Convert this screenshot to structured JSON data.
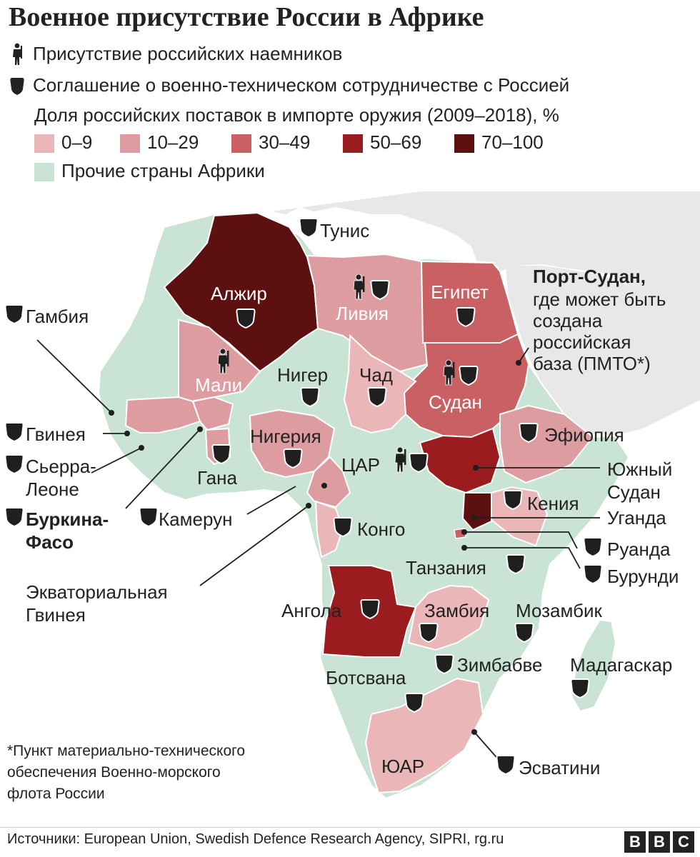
{
  "title": "Военное присутствие России в Африке",
  "legend": {
    "mercenaries": "Присутствие российских наемников",
    "agreement": "Соглашение о военно-техническом сотрудничестве с Россией",
    "share_title": "Доля российских поставок в импорте оружия (2009–2018), %",
    "bins": [
      {
        "label": "0–9",
        "color": "#ebb6b8"
      },
      {
        "label": "10–29",
        "color": "#dd9da0"
      },
      {
        "label": "30–49",
        "color": "#c86064"
      },
      {
        "label": "50–69",
        "color": "#9b1c1f"
      },
      {
        "label": "70–100",
        "color": "#5c1010"
      }
    ],
    "other": {
      "label": "Прочие страны Африки",
      "color": "#c9e3d5"
    }
  },
  "map": {
    "countries": {
      "algeria": "Алжир",
      "libya": "Ливия",
      "egypt": "Египет",
      "sudan": "Судан",
      "mali": "Мали",
      "niger": "Нигер",
      "chad": "Чад",
      "nigeria": "Нигерия",
      "car": "ЦАР",
      "ghana": "Гана",
      "ethiopia": "Эфиопия",
      "congo": "Конго",
      "tanzania": "Танзания",
      "angola": "Ангола",
      "zambia": "Замбия",
      "mozambique": "Мозамбик",
      "zimbabwe": "Зимбабве",
      "madagascar": "Мадагаскар",
      "botswana": "Ботсвана",
      "south_africa": "ЮАР",
      "kenya": "Кения"
    },
    "callouts": {
      "tunisia": "Тунис",
      "gambia": "Гамбия",
      "guinea": "Гвинея",
      "sierra_leone_1": "Сьерра-",
      "sierra_leone_2": "Леоне",
      "burkina_1": "Буркина-",
      "burkina_2": "Фасо",
      "cameroon": "Камерун",
      "eq_guinea_1": "Экваториальная",
      "eq_guinea_2": "Гвинея",
      "south_sudan_1": "Южный",
      "south_sudan_2": "Судан",
      "uganda": "Уганда",
      "rwanda": "Руанда",
      "burundi": "Бурунди",
      "eswatini": "Эсватини"
    },
    "port_sudan": {
      "bold": "Порт-Судан,",
      "lines": [
        "где может быть",
        "создана",
        "российская",
        "база (ПМТО*)"
      ]
    }
  },
  "footnote": "*Пункт материально-технического обеспечения Военно-морского флота России",
  "source": "Источники: European Union, Swedish Defence Research Agency, SIPRI, rg.ru",
  "logo": [
    "B",
    "B",
    "C"
  ]
}
